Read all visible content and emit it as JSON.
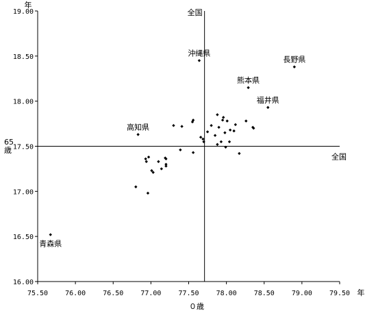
{
  "chart_data": {
    "type": "scatter",
    "xlim": [
      75.5,
      79.5
    ],
    "ylim": [
      16.0,
      19.0
    ],
    "x_ticks": [
      "75.50",
      "76.00",
      "76.50",
      "77.00",
      "77.50",
      "78.00",
      "78.50",
      "79.00",
      "79.50"
    ],
    "y_ticks": [
      "16.00",
      "16.50",
      "17.00",
      "17.50",
      "18.00",
      "18.50",
      "19.00"
    ],
    "xlabel": "０歳",
    "ylabel": "65\n歳",
    "x_unit": "年",
    "y_unit": "年",
    "reference_lines": {
      "x": 77.71,
      "y": 17.5,
      "x_label": "全国",
      "y_label": "全国"
    },
    "points": [
      {
        "x": 75.67,
        "y": 16.52
      },
      {
        "x": 76.83,
        "y": 17.63
      },
      {
        "x": 77.64,
        "y": 18.45
      },
      {
        "x": 78.9,
        "y": 18.38
      },
      {
        "x": 78.29,
        "y": 18.15
      },
      {
        "x": 78.55,
        "y": 17.93
      },
      {
        "x": 76.8,
        "y": 17.05
      },
      {
        "x": 76.96,
        "y": 16.98
      },
      {
        "x": 76.93,
        "y": 17.36
      },
      {
        "x": 76.97,
        "y": 17.38
      },
      {
        "x": 76.94,
        "y": 17.33
      },
      {
        "x": 77.01,
        "y": 17.23
      },
      {
        "x": 77.03,
        "y": 17.21
      },
      {
        "x": 77.1,
        "y": 17.33
      },
      {
        "x": 77.14,
        "y": 17.25
      },
      {
        "x": 77.19,
        "y": 17.37
      },
      {
        "x": 77.2,
        "y": 17.36
      },
      {
        "x": 77.2,
        "y": 17.3
      },
      {
        "x": 77.2,
        "y": 17.28
      },
      {
        "x": 77.3,
        "y": 17.73
      },
      {
        "x": 77.39,
        "y": 17.46
      },
      {
        "x": 77.41,
        "y": 17.72
      },
      {
        "x": 77.55,
        "y": 17.77
      },
      {
        "x": 77.56,
        "y": 17.79
      },
      {
        "x": 77.56,
        "y": 17.43
      },
      {
        "x": 77.66,
        "y": 17.6
      },
      {
        "x": 77.69,
        "y": 17.58
      },
      {
        "x": 77.7,
        "y": 17.55
      },
      {
        "x": 77.75,
        "y": 17.66
      },
      {
        "x": 77.8,
        "y": 17.73
      },
      {
        "x": 77.85,
        "y": 17.62
      },
      {
        "x": 77.88,
        "y": 17.85
      },
      {
        "x": 77.88,
        "y": 17.52
      },
      {
        "x": 77.9,
        "y": 17.71
      },
      {
        "x": 77.93,
        "y": 17.55
      },
      {
        "x": 77.95,
        "y": 17.79
      },
      {
        "x": 77.96,
        "y": 17.82
      },
      {
        "x": 77.98,
        "y": 17.65
      },
      {
        "x": 77.99,
        "y": 17.49
      },
      {
        "x": 78.01,
        "y": 17.78
      },
      {
        "x": 78.04,
        "y": 17.55
      },
      {
        "x": 78.05,
        "y": 17.68
      },
      {
        "x": 78.1,
        "y": 17.67
      },
      {
        "x": 78.12,
        "y": 17.74
      },
      {
        "x": 78.17,
        "y": 17.42
      },
      {
        "x": 78.26,
        "y": 17.78
      },
      {
        "x": 78.35,
        "y": 17.71
      },
      {
        "x": 78.36,
        "y": 17.7
      }
    ],
    "annotations": [
      {
        "text": "青森県",
        "x": 75.67,
        "y": 16.52,
        "pos": "below"
      },
      {
        "text": "高知県",
        "x": 76.83,
        "y": 17.63,
        "pos": "above"
      },
      {
        "text": "沖縄県",
        "x": 77.64,
        "y": 18.45,
        "pos": "above"
      },
      {
        "text": "長野県",
        "x": 78.9,
        "y": 18.38,
        "pos": "above"
      },
      {
        "text": "熊本県",
        "x": 78.29,
        "y": 18.15,
        "pos": "above"
      },
      {
        "text": "福井県",
        "x": 78.55,
        "y": 17.93,
        "pos": "above"
      }
    ]
  }
}
